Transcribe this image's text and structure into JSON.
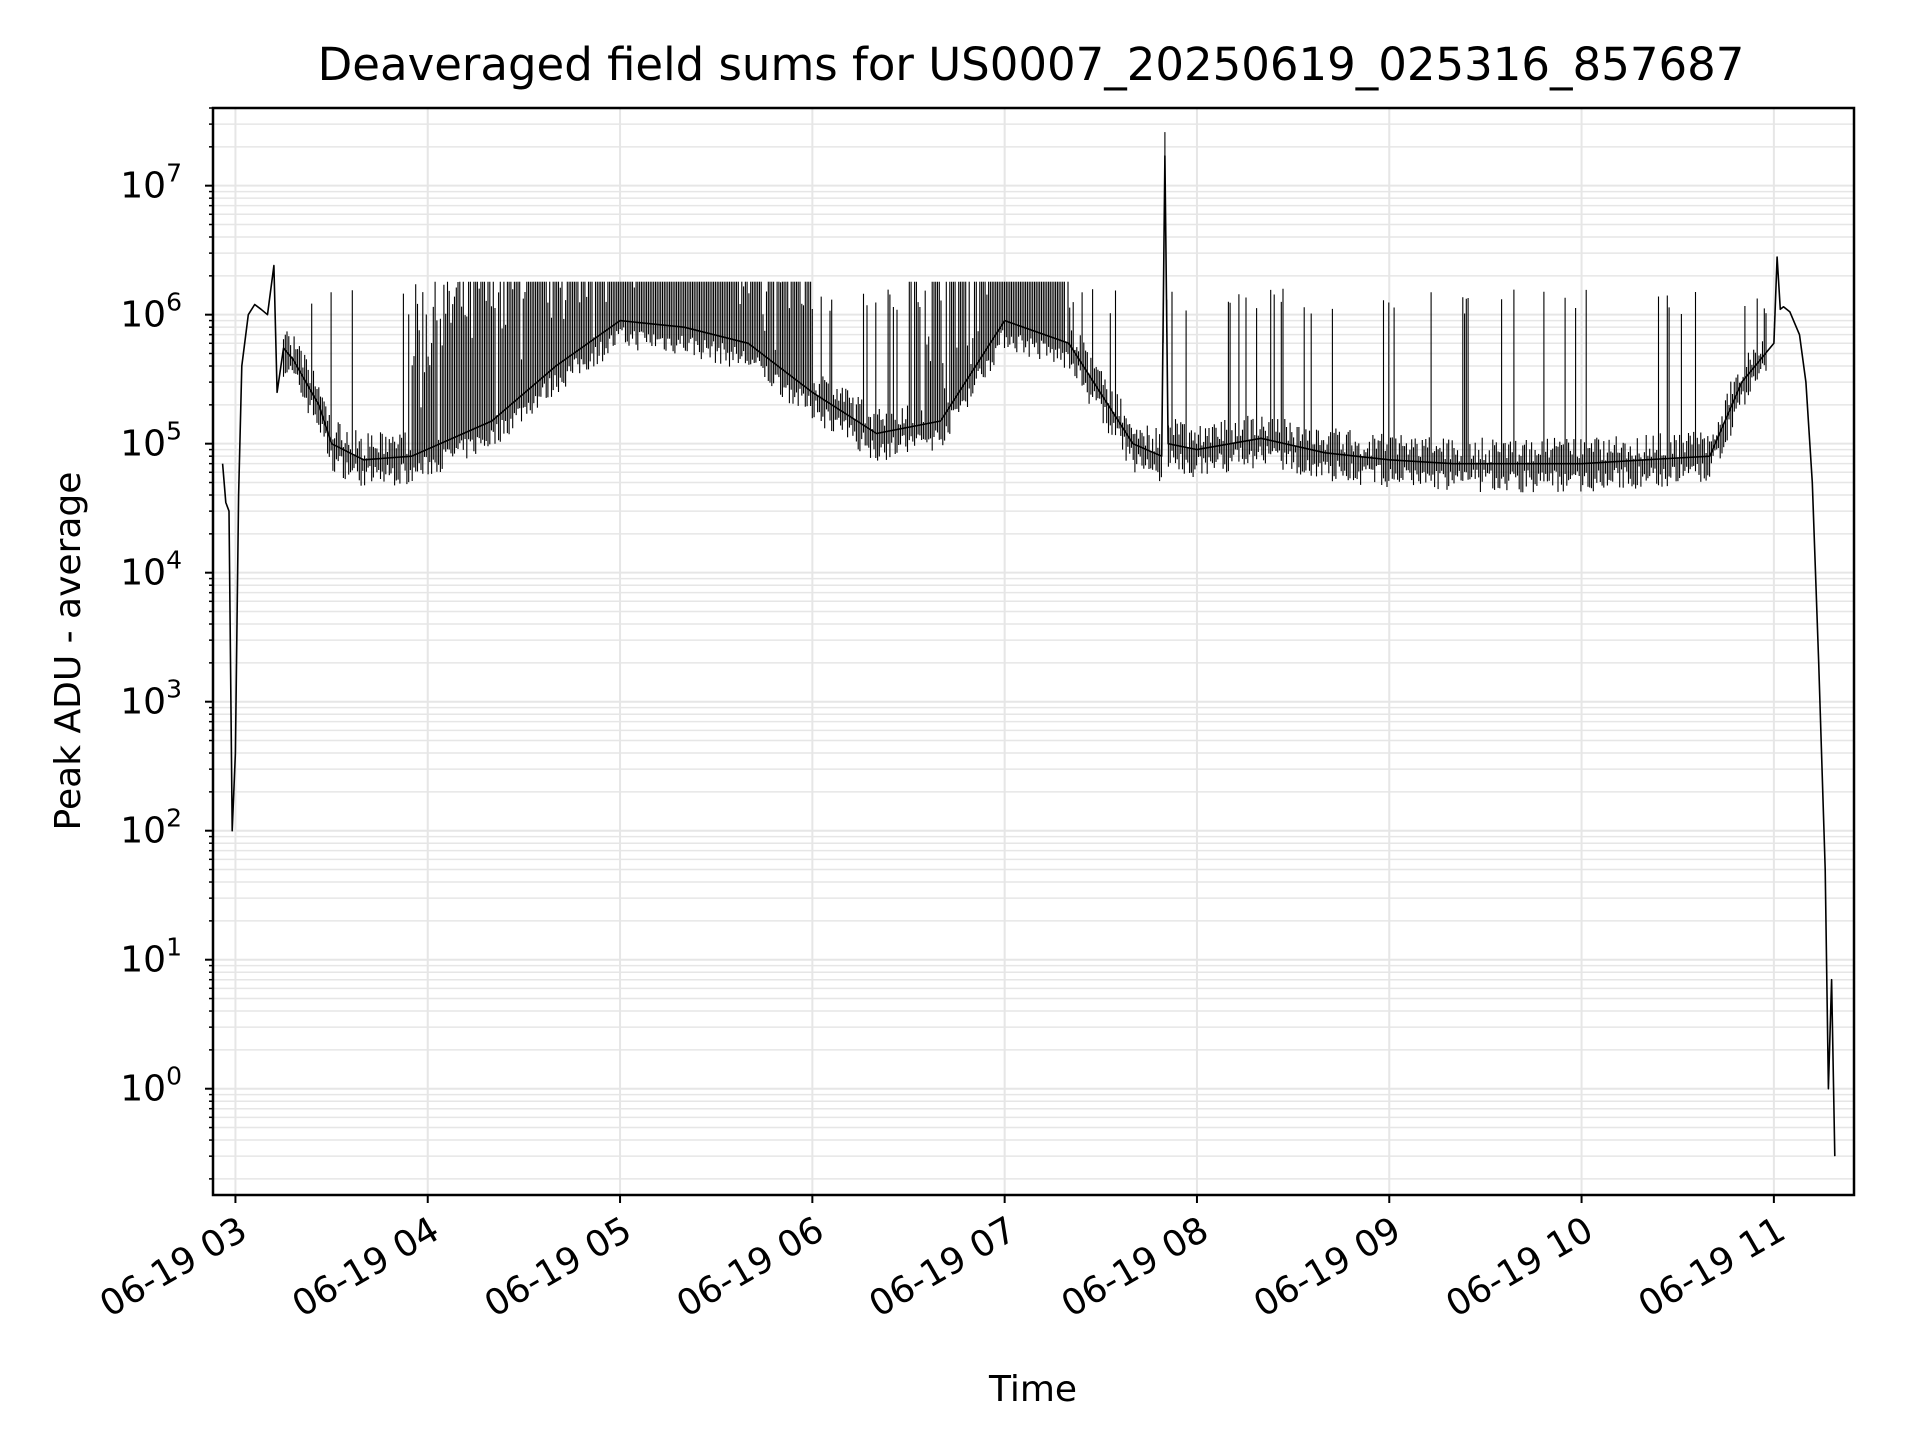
{
  "chart_data": {
    "type": "line",
    "title": "Deaveraged field sums for US0007_20250619_025316_857687",
    "xlabel": "Time",
    "ylabel": "Peak ADU - average",
    "yscale": "log",
    "grid": {
      "major": true,
      "minor": true
    },
    "line_color": "#000000",
    "grid_color": "#e6e6e6",
    "xlim": [
      "06-19 02:53",
      "06-19 11:25"
    ],
    "ylim": [
      0.15,
      40000000
    ],
    "x_ticks": [
      {
        "t": "06-19 03:00",
        "label": "06-19 03"
      },
      {
        "t": "06-19 04:00",
        "label": "06-19 04"
      },
      {
        "t": "06-19 05:00",
        "label": "06-19 05"
      },
      {
        "t": "06-19 06:00",
        "label": "06-19 06"
      },
      {
        "t": "06-19 07:00",
        "label": "06-19 07"
      },
      {
        "t": "06-19 08:00",
        "label": "06-19 08"
      },
      {
        "t": "06-19 09:00",
        "label": "06-19 09"
      },
      {
        "t": "06-19 10:00",
        "label": "06-19 10"
      },
      {
        "t": "06-19 11:00",
        "label": "06-19 11"
      }
    ],
    "y_ticks": [
      {
        "value": 1,
        "base": "10",
        "exp": "0"
      },
      {
        "value": 10,
        "base": "10",
        "exp": "1"
      },
      {
        "value": 100,
        "base": "10",
        "exp": "2"
      },
      {
        "value": 1000,
        "base": "10",
        "exp": "3"
      },
      {
        "value": 10000,
        "base": "10",
        "exp": "4"
      },
      {
        "value": 100000,
        "base": "10",
        "exp": "5"
      },
      {
        "value": 1000000,
        "base": "10",
        "exp": "6"
      },
      {
        "value": 10000000,
        "base": "10",
        "exp": "7"
      }
    ],
    "series": [
      {
        "x": [
          "06-19 02:56",
          "06-19 02:57",
          "06-19 02:58",
          "06-19 02:59",
          "06-19 03:00",
          "06-19 03:01",
          "06-19 03:02",
          "06-19 03:04",
          "06-19 03:06",
          "06-19 03:08",
          "06-19 03:10",
          "06-19 03:12",
          "06-19 03:13",
          "06-19 03:15",
          "06-19 03:18",
          "06-19 03:22",
          "06-19 03:26",
          "06-19 03:30",
          "06-19 03:40",
          "06-19 03:55",
          "06-19 04:20",
          "06-19 04:40",
          "06-19 05:00",
          "06-19 05:20",
          "06-19 05:40",
          "06-19 06:00",
          "06-19 06:20",
          "06-19 06:40",
          "06-19 07:00",
          "06-19 07:20",
          "06-19 07:40",
          "06-19 07:49",
          "06-19 07:50",
          "06-19 07:51",
          "06-19 08:00",
          "06-19 08:20",
          "06-19 08:40",
          "06-19 09:00",
          "06-19 09:20",
          "06-19 09:40",
          "06-19 10:00",
          "06-19 10:20",
          "06-19 10:40",
          "06-19 10:50",
          "06-19 11:00",
          "06-19 11:01",
          "06-19 11:02",
          "06-19 11:03",
          "06-19 11:05",
          "06-19 11:08",
          "06-19 11:10",
          "06-19 11:12",
          "06-19 11:14",
          "06-19 11:16",
          "06-19 11:17",
          "06-19 11:18",
          "06-19 11:19"
        ],
        "y": [
          70000,
          35000,
          30000,
          100,
          400,
          40000,
          400000,
          1000000,
          1200000,
          1100000,
          1000000,
          2400000,
          250000,
          550000,
          450000,
          300000,
          200000,
          100000,
          75000,
          80000,
          150000,
          400000,
          900000,
          800000,
          600000,
          250000,
          120000,
          150000,
          900000,
          600000,
          100000,
          80000,
          17000000,
          100000,
          90000,
          110000,
          85000,
          75000,
          70000,
          70000,
          70000,
          75000,
          80000,
          300000,
          600000,
          2800000,
          1100000,
          1150000,
          1050000,
          700000,
          300000,
          50000,
          2000,
          50,
          1,
          7,
          0.3
        ]
      }
    ]
  }
}
